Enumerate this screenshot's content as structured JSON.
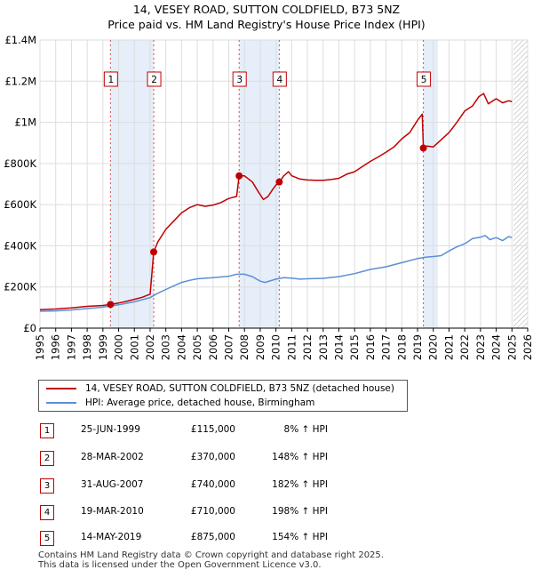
{
  "chart_data": {
    "type": "line",
    "title": "14, VESEY ROAD, SUTTON COLDFIELD, B73 5NZ",
    "subtitle": "Price paid vs. HM Land Registry's House Price Index (HPI)",
    "xlim": [
      1995,
      2026
    ],
    "ylim": [
      0,
      1400000
    ],
    "x_ticks": [
      1995,
      1996,
      1997,
      1998,
      1999,
      2000,
      2001,
      2002,
      2003,
      2004,
      2005,
      2006,
      2007,
      2008,
      2009,
      2010,
      2011,
      2012,
      2013,
      2014,
      2015,
      2016,
      2017,
      2018,
      2019,
      2020,
      2021,
      2022,
      2023,
      2024,
      2025,
      2026
    ],
    "y_ticks": [
      {
        "value": 0,
        "label": "£0"
      },
      {
        "value": 200000,
        "label": "£200K"
      },
      {
        "value": 400000,
        "label": "£400K"
      },
      {
        "value": 600000,
        "label": "£600K"
      },
      {
        "value": 800000,
        "label": "£800K"
      },
      {
        "value": 1000000,
        "label": "£1M"
      },
      {
        "value": 1200000,
        "label": "£1.2M"
      },
      {
        "value": 1400000,
        "label": "£1.4M"
      }
    ],
    "hatch_start": 2025.1,
    "series": [
      {
        "name": "14, VESEY ROAD, SUTTON COLDFIELD, B73 5NZ (detached house)",
        "color": "#c00000",
        "x": [
          1995.0,
          1996.0,
          1997.0,
          1998.0,
          1999.0,
          1999.48,
          2000.0,
          2000.5,
          2001.0,
          2001.5,
          2002.0,
          2002.23,
          2002.5,
          2003.0,
          2003.5,
          2004.0,
          2004.5,
          2005.0,
          2005.5,
          2006.0,
          2006.5,
          2007.0,
          2007.5,
          2007.66,
          2008.0,
          2008.5,
          2008.9,
          2009.2,
          2009.5,
          2009.8,
          2010.0,
          2010.21,
          2010.5,
          2010.8,
          2011.0,
          2011.5,
          2012.0,
          2012.5,
          2013.0,
          2013.5,
          2014.0,
          2014.5,
          2015.0,
          2015.5,
          2016.0,
          2016.5,
          2017.0,
          2017.5,
          2018.0,
          2018.5,
          2019.0,
          2019.3,
          2019.37,
          2019.6,
          2020.0,
          2020.5,
          2021.0,
          2021.5,
          2022.0,
          2022.5,
          2022.9,
          2023.2,
          2023.5,
          2024.0,
          2024.4,
          2024.8,
          2025.0
        ],
        "y": [
          90000,
          93000,
          98000,
          106000,
          110000,
          115000,
          122000,
          130000,
          140000,
          150000,
          165000,
          370000,
          420000,
          480000,
          520000,
          560000,
          585000,
          600000,
          592000,
          598000,
          610000,
          630000,
          640000,
          740000,
          740000,
          710000,
          660000,
          625000,
          640000,
          675000,
          695000,
          710000,
          740000,
          760000,
          740000,
          725000,
          720000,
          718000,
          718000,
          722000,
          728000,
          748000,
          760000,
          785000,
          810000,
          832000,
          855000,
          880000,
          920000,
          950000,
          1010000,
          1040000,
          875000,
          885000,
          880000,
          915000,
          950000,
          1000000,
          1055000,
          1080000,
          1125000,
          1140000,
          1090000,
          1115000,
          1095000,
          1105000,
          1100000
        ]
      },
      {
        "name": "HPI: Average price, detached house, Birmingham",
        "color": "#5b8fd4",
        "x": [
          1995.0,
          1996.0,
          1997.0,
          1998.0,
          1999.0,
          2000.0,
          2001.0,
          2002.0,
          2002.5,
          2003.0,
          2003.5,
          2004.0,
          2004.5,
          2005.0,
          2006.0,
          2007.0,
          2007.5,
          2008.0,
          2008.5,
          2009.0,
          2009.3,
          2010.0,
          2010.5,
          2011.0,
          2011.5,
          2012.0,
          2013.0,
          2014.0,
          2015.0,
          2016.0,
          2017.0,
          2018.0,
          2019.0,
          2019.5,
          2020.0,
          2020.5,
          2021.0,
          2021.5,
          2022.0,
          2022.5,
          2023.0,
          2023.3,
          2023.6,
          2024.0,
          2024.4,
          2024.8,
          2025.0
        ],
        "y": [
          82000,
          84000,
          88000,
          95000,
          102000,
          113000,
          128000,
          148000,
          170000,
          188000,
          205000,
          222000,
          232000,
          240000,
          245000,
          252000,
          262000,
          262000,
          250000,
          228000,
          222000,
          238000,
          245000,
          243000,
          238000,
          240000,
          242000,
          250000,
          265000,
          285000,
          298000,
          318000,
          338000,
          345000,
          348000,
          352000,
          375000,
          395000,
          410000,
          435000,
          442000,
          450000,
          430000,
          440000,
          425000,
          445000,
          440000
        ]
      }
    ],
    "sales_markers": [
      {
        "label": "1",
        "x": 1999.48,
        "y": 115000
      },
      {
        "label": "2",
        "x": 2002.23,
        "y": 370000
      },
      {
        "label": "3",
        "x": 2007.66,
        "y": 740000
      },
      {
        "label": "4",
        "x": 2010.21,
        "y": 710000
      },
      {
        "label": "5",
        "x": 2019.37,
        "y": 875000
      }
    ],
    "shaded_spans": [
      [
        1999.48,
        2002.23
      ],
      [
        2007.66,
        2010.21
      ],
      [
        2019.37,
        2020.3
      ]
    ]
  },
  "legend": {
    "property_label": "14, VESEY ROAD, SUTTON COLDFIELD, B73 5NZ (detached house)",
    "hpi_label": "HPI: Average price, detached house, Birmingham",
    "property_color": "#c00000",
    "hpi_color": "#5b8fd4"
  },
  "sales": [
    {
      "num": "1",
      "date": "25-JUN-1999",
      "price": "£115,000",
      "hpi": "8% ↑ HPI"
    },
    {
      "num": "2",
      "date": "28-MAR-2002",
      "price": "£370,000",
      "hpi": "148% ↑ HPI"
    },
    {
      "num": "3",
      "date": "31-AUG-2007",
      "price": "£740,000",
      "hpi": "182% ↑ HPI"
    },
    {
      "num": "4",
      "date": "19-MAR-2010",
      "price": "£710,000",
      "hpi": "198% ↑ HPI"
    },
    {
      "num": "5",
      "date": "14-MAY-2019",
      "price": "£875,000",
      "hpi": "154% ↑ HPI"
    }
  ],
  "footer": {
    "line1": "Contains HM Land Registry data © Crown copyright and database right 2025.",
    "line2": "This data is licensed under the Open Government Licence v3.0."
  }
}
